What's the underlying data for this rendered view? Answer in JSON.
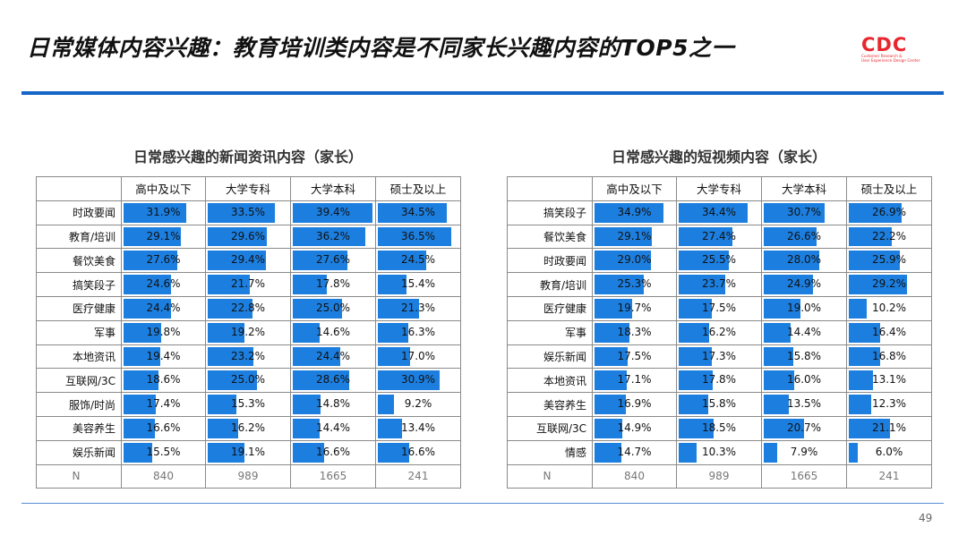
{
  "header": {
    "title": "日常媒体内容兴趣：教育培训类内容是不同家长兴趣内容的TOP5之一",
    "logo_text": "CDC",
    "logo_sub1": "Customer Research &",
    "logo_sub2": "User Experience Design Center"
  },
  "page_number": "49",
  "colors": {
    "bar": "#1c7fe0",
    "rule": "#1565c8",
    "logo": "#e8262d"
  },
  "left_table": {
    "title": "日常感兴趣的新闻资讯内容（家长）",
    "columns": [
      "高中及以下",
      "大学专科",
      "大学本科",
      "硕士及以上"
    ],
    "rows": [
      {
        "label": "时政要闻",
        "values": [
          "31.9%",
          "33.5%",
          "39.4%",
          "34.5%"
        ]
      },
      {
        "label": "教育/培训",
        "values": [
          "29.1%",
          "29.6%",
          "36.2%",
          "36.5%"
        ]
      },
      {
        "label": "餐饮美食",
        "values": [
          "27.6%",
          "29.4%",
          "27.6%",
          "24.5%"
        ]
      },
      {
        "label": "搞笑段子",
        "values": [
          "24.6%",
          "21.7%",
          "17.8%",
          "15.4%"
        ]
      },
      {
        "label": "医疗健康",
        "values": [
          "24.4%",
          "22.8%",
          "25.0%",
          "21.3%"
        ]
      },
      {
        "label": "军事",
        "values": [
          "19.8%",
          "19.2%",
          "14.6%",
          "16.3%"
        ]
      },
      {
        "label": "本地资讯",
        "values": [
          "19.4%",
          "23.2%",
          "24.4%",
          "17.0%"
        ]
      },
      {
        "label": "互联网/3C",
        "values": [
          "18.6%",
          "25.0%",
          "28.6%",
          "30.9%"
        ]
      },
      {
        "label": "服饰/时尚",
        "values": [
          "17.4%",
          "15.3%",
          "14.8%",
          "9.2%"
        ]
      },
      {
        "label": "美容养生",
        "values": [
          "16.6%",
          "16.2%",
          "14.4%",
          "13.4%"
        ]
      },
      {
        "label": "娱乐新闻",
        "values": [
          "15.5%",
          "19.1%",
          "16.6%",
          "16.6%"
        ]
      }
    ],
    "n_label": "N",
    "n_values": [
      "840",
      "989",
      "1665",
      "241"
    ]
  },
  "right_table": {
    "title": "日常感兴趣的短视频内容（家长）",
    "columns": [
      "高中及以下",
      "大学专科",
      "大学本科",
      "硕士及以上"
    ],
    "rows": [
      {
        "label": "搞笑段子",
        "values": [
          "34.9%",
          "34.4%",
          "30.7%",
          "26.9%"
        ]
      },
      {
        "label": "餐饮美食",
        "values": [
          "29.1%",
          "27.4%",
          "26.6%",
          "22.2%"
        ]
      },
      {
        "label": "时政要闻",
        "values": [
          "29.0%",
          "25.5%",
          "28.0%",
          "25.9%"
        ]
      },
      {
        "label": "教育/培训",
        "values": [
          "25.3%",
          "23.7%",
          "24.9%",
          "29.2%"
        ]
      },
      {
        "label": "医疗健康",
        "values": [
          "19.7%",
          "17.5%",
          "19.0%",
          "10.2%"
        ]
      },
      {
        "label": "军事",
        "values": [
          "18.3%",
          "16.2%",
          "14.4%",
          "16.4%"
        ]
      },
      {
        "label": "娱乐新闻",
        "values": [
          "17.5%",
          "17.3%",
          "15.8%",
          "16.8%"
        ]
      },
      {
        "label": "本地资讯",
        "values": [
          "17.1%",
          "17.8%",
          "16.0%",
          "13.1%"
        ]
      },
      {
        "label": "美容养生",
        "values": [
          "16.9%",
          "15.8%",
          "13.5%",
          "12.3%"
        ]
      },
      {
        "label": "互联网/3C",
        "values": [
          "14.9%",
          "18.5%",
          "20.7%",
          "21.1%"
        ]
      },
      {
        "label": "情感",
        "values": [
          "14.7%",
          "10.3%",
          "7.9%",
          "6.0%"
        ]
      }
    ],
    "n_label": "N",
    "n_values": [
      "840",
      "989",
      "1665",
      "241"
    ]
  }
}
